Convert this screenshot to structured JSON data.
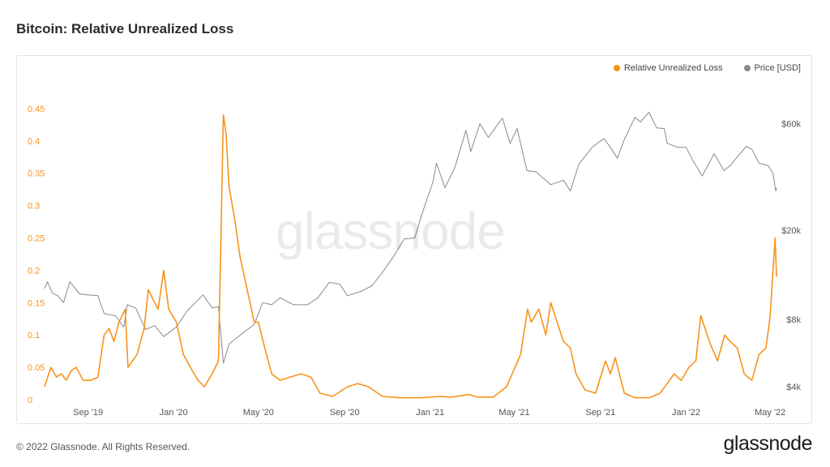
{
  "page": {
    "title": "Bitcoin: Relative Unrealized Loss",
    "footer": "© 2022 Glassnode. All Rights Reserved.",
    "brand": "glassnode",
    "watermark": "glassnode"
  },
  "chart_data": {
    "type": "line",
    "title": "Bitcoin: Relative Unrealized Loss",
    "legend_position": "top-right",
    "grid": false,
    "x_ticks": [
      "Sep '19",
      "Jan '20",
      "May '20",
      "Sep '20",
      "Jan '21",
      "May '21",
      "Sep '21",
      "Jan '22",
      "May '22"
    ],
    "x_range": [
      "2019-07-01",
      "2022-05-10"
    ],
    "y_left": {
      "range": [
        0,
        0.47
      ],
      "ticks": [
        0,
        0.05,
        0.1,
        0.15,
        0.2,
        0.25,
        0.3,
        0.35,
        0.4,
        0.45
      ],
      "tick_labels": [
        "0",
        "0.05",
        "0.1",
        "0.15",
        "0.2",
        "0.25",
        "0.3",
        "0.35",
        "0.4",
        "0.45"
      ]
    },
    "y_right": {
      "scale": "log",
      "range": [
        3500,
        80000
      ],
      "ticks": [
        4000,
        8000,
        20000,
        60000
      ],
      "tick_labels": [
        "$4k",
        "$8k",
        "$20k",
        "$60k"
      ]
    },
    "series": [
      {
        "name": "Relative Unrealized Loss",
        "color": "#f7931a",
        "axis": "left",
        "points": [
          [
            "2019-07-01",
            0.02
          ],
          [
            "2019-07-10",
            0.05
          ],
          [
            "2019-07-18",
            0.035
          ],
          [
            "2019-07-25",
            0.04
          ],
          [
            "2019-08-01",
            0.03
          ],
          [
            "2019-08-08",
            0.045
          ],
          [
            "2019-08-15",
            0.05
          ],
          [
            "2019-08-25",
            0.03
          ],
          [
            "2019-09-05",
            0.03
          ],
          [
            "2019-09-15",
            0.035
          ],
          [
            "2019-09-24",
            0.1
          ],
          [
            "2019-10-01",
            0.11
          ],
          [
            "2019-10-08",
            0.09
          ],
          [
            "2019-10-15",
            0.12
          ],
          [
            "2019-10-24",
            0.14
          ],
          [
            "2019-10-28",
            0.05
          ],
          [
            "2019-11-10",
            0.07
          ],
          [
            "2019-11-20",
            0.11
          ],
          [
            "2019-11-26",
            0.17
          ],
          [
            "2019-12-05",
            0.15
          ],
          [
            "2019-12-10",
            0.14
          ],
          [
            "2019-12-18",
            0.2
          ],
          [
            "2019-12-25",
            0.14
          ],
          [
            "2020-01-05",
            0.12
          ],
          [
            "2020-01-15",
            0.07
          ],
          [
            "2020-01-25",
            0.05
          ],
          [
            "2020-02-05",
            0.03
          ],
          [
            "2020-02-14",
            0.02
          ],
          [
            "2020-02-25",
            0.04
          ],
          [
            "2020-03-05",
            0.06
          ],
          [
            "2020-03-12",
            0.44
          ],
          [
            "2020-03-16",
            0.41
          ],
          [
            "2020-03-20",
            0.33
          ],
          [
            "2020-03-28",
            0.28
          ],
          [
            "2020-04-05",
            0.22
          ],
          [
            "2020-04-15",
            0.17
          ],
          [
            "2020-04-25",
            0.12
          ],
          [
            "2020-05-01",
            0.12
          ],
          [
            "2020-05-10",
            0.08
          ],
          [
            "2020-05-20",
            0.04
          ],
          [
            "2020-06-01",
            0.03
          ],
          [
            "2020-06-15",
            0.035
          ],
          [
            "2020-07-01",
            0.04
          ],
          [
            "2020-07-15",
            0.035
          ],
          [
            "2020-07-28",
            0.01
          ],
          [
            "2020-08-15",
            0.005
          ],
          [
            "2020-09-05",
            0.02
          ],
          [
            "2020-09-20",
            0.025
          ],
          [
            "2020-10-05",
            0.02
          ],
          [
            "2020-10-25",
            0.005
          ],
          [
            "2020-11-20",
            0.003
          ],
          [
            "2020-12-20",
            0.003
          ],
          [
            "2021-01-15",
            0.005
          ],
          [
            "2021-02-01",
            0.004
          ],
          [
            "2021-02-25",
            0.008
          ],
          [
            "2021-03-10",
            0.004
          ],
          [
            "2021-04-01",
            0.004
          ],
          [
            "2021-04-20",
            0.02
          ],
          [
            "2021-04-28",
            0.04
          ],
          [
            "2021-05-10",
            0.07
          ],
          [
            "2021-05-20",
            0.14
          ],
          [
            "2021-05-25",
            0.12
          ],
          [
            "2021-06-05",
            0.14
          ],
          [
            "2021-06-15",
            0.1
          ],
          [
            "2021-06-22",
            0.15
          ],
          [
            "2021-07-01",
            0.12
          ],
          [
            "2021-07-10",
            0.09
          ],
          [
            "2021-07-20",
            0.08
          ],
          [
            "2021-07-28",
            0.04
          ],
          [
            "2021-08-10",
            0.015
          ],
          [
            "2021-08-25",
            0.01
          ],
          [
            "2021-09-08",
            0.06
          ],
          [
            "2021-09-15",
            0.04
          ],
          [
            "2021-09-22",
            0.065
          ],
          [
            "2021-10-05",
            0.01
          ],
          [
            "2021-10-20",
            0.003
          ],
          [
            "2021-11-10",
            0.003
          ],
          [
            "2021-11-25",
            0.01
          ],
          [
            "2021-12-05",
            0.025
          ],
          [
            "2021-12-15",
            0.04
          ],
          [
            "2021-12-25",
            0.03
          ],
          [
            "2022-01-05",
            0.05
          ],
          [
            "2022-01-15",
            0.06
          ],
          [
            "2022-01-22",
            0.13
          ],
          [
            "2022-01-28",
            0.11
          ],
          [
            "2022-02-05",
            0.085
          ],
          [
            "2022-02-15",
            0.06
          ],
          [
            "2022-02-25",
            0.1
          ],
          [
            "2022-03-05",
            0.09
          ],
          [
            "2022-03-15",
            0.08
          ],
          [
            "2022-03-25",
            0.04
          ],
          [
            "2022-04-05",
            0.03
          ],
          [
            "2022-04-15",
            0.07
          ],
          [
            "2022-04-25",
            0.08
          ],
          [
            "2022-05-01",
            0.13
          ],
          [
            "2022-05-05",
            0.2
          ],
          [
            "2022-05-08",
            0.25
          ],
          [
            "2022-05-10",
            0.19
          ]
        ]
      },
      {
        "name": "Price [USD]",
        "color": "#8a8a8a",
        "axis": "right",
        "points": [
          [
            "2019-07-01",
            11000
          ],
          [
            "2019-07-05",
            11800
          ],
          [
            "2019-07-12",
            10500
          ],
          [
            "2019-07-20",
            10200
          ],
          [
            "2019-07-28",
            9500
          ],
          [
            "2019-08-06",
            11800
          ],
          [
            "2019-08-20",
            10400
          ],
          [
            "2019-09-01",
            10300
          ],
          [
            "2019-09-15",
            10200
          ],
          [
            "2019-09-24",
            8500
          ],
          [
            "2019-10-10",
            8300
          ],
          [
            "2019-10-22",
            7400
          ],
          [
            "2019-10-27",
            9300
          ],
          [
            "2019-11-08",
            9000
          ],
          [
            "2019-11-22",
            7200
          ],
          [
            "2019-12-05",
            7500
          ],
          [
            "2019-12-18",
            6700
          ],
          [
            "2020-01-05",
            7400
          ],
          [
            "2020-01-20",
            8700
          ],
          [
            "2020-02-12",
            10300
          ],
          [
            "2020-02-25",
            9000
          ],
          [
            "2020-03-05",
            9100
          ],
          [
            "2020-03-12",
            5100
          ],
          [
            "2020-03-20",
            6200
          ],
          [
            "2020-04-05",
            6800
          ],
          [
            "2020-04-25",
            7600
          ],
          [
            "2020-05-07",
            9500
          ],
          [
            "2020-05-20",
            9300
          ],
          [
            "2020-06-01",
            10000
          ],
          [
            "2020-06-20",
            9300
          ],
          [
            "2020-07-10",
            9300
          ],
          [
            "2020-07-25",
            10000
          ],
          [
            "2020-08-10",
            11700
          ],
          [
            "2020-08-25",
            11500
          ],
          [
            "2020-09-05",
            10200
          ],
          [
            "2020-09-25",
            10700
          ],
          [
            "2020-10-10",
            11300
          ],
          [
            "2020-10-25",
            13000
          ],
          [
            "2020-11-10",
            15300
          ],
          [
            "2020-11-25",
            18300
          ],
          [
            "2020-12-10",
            18500
          ],
          [
            "2020-12-20",
            23500
          ],
          [
            "2021-01-05",
            33000
          ],
          [
            "2021-01-10",
            40000
          ],
          [
            "2021-01-22",
            31000
          ],
          [
            "2021-02-05",
            38000
          ],
          [
            "2021-02-21",
            56000
          ],
          [
            "2021-02-28",
            45000
          ],
          [
            "2021-03-13",
            60000
          ],
          [
            "2021-03-25",
            52000
          ],
          [
            "2021-04-14",
            63500
          ],
          [
            "2021-04-25",
            49000
          ],
          [
            "2021-05-05",
            57000
          ],
          [
            "2021-05-19",
            37000
          ],
          [
            "2021-06-01",
            36500
          ],
          [
            "2021-06-22",
            32000
          ],
          [
            "2021-07-10",
            33500
          ],
          [
            "2021-07-20",
            30000
          ],
          [
            "2021-08-01",
            39500
          ],
          [
            "2021-08-20",
            47000
          ],
          [
            "2021-09-06",
            51500
          ],
          [
            "2021-09-15",
            47000
          ],
          [
            "2021-09-25",
            42000
          ],
          [
            "2021-10-05",
            51000
          ],
          [
            "2021-10-20",
            64000
          ],
          [
            "2021-10-28",
            61000
          ],
          [
            "2021-11-09",
            67500
          ],
          [
            "2021-11-20",
            57500
          ],
          [
            "2021-12-01",
            57000
          ],
          [
            "2021-12-05",
            49000
          ],
          [
            "2021-12-20",
            47000
          ],
          [
            "2022-01-01",
            47000
          ],
          [
            "2022-01-10",
            41500
          ],
          [
            "2022-01-24",
            35000
          ],
          [
            "2022-02-10",
            44000
          ],
          [
            "2022-02-24",
            37000
          ],
          [
            "2022-03-05",
            39000
          ],
          [
            "2022-03-28",
            47500
          ],
          [
            "2022-04-05",
            46000
          ],
          [
            "2022-04-15",
            40000
          ],
          [
            "2022-04-28",
            39000
          ],
          [
            "2022-05-05",
            36000
          ],
          [
            "2022-05-09",
            30000
          ],
          [
            "2022-05-10",
            31000
          ]
        ]
      }
    ]
  }
}
